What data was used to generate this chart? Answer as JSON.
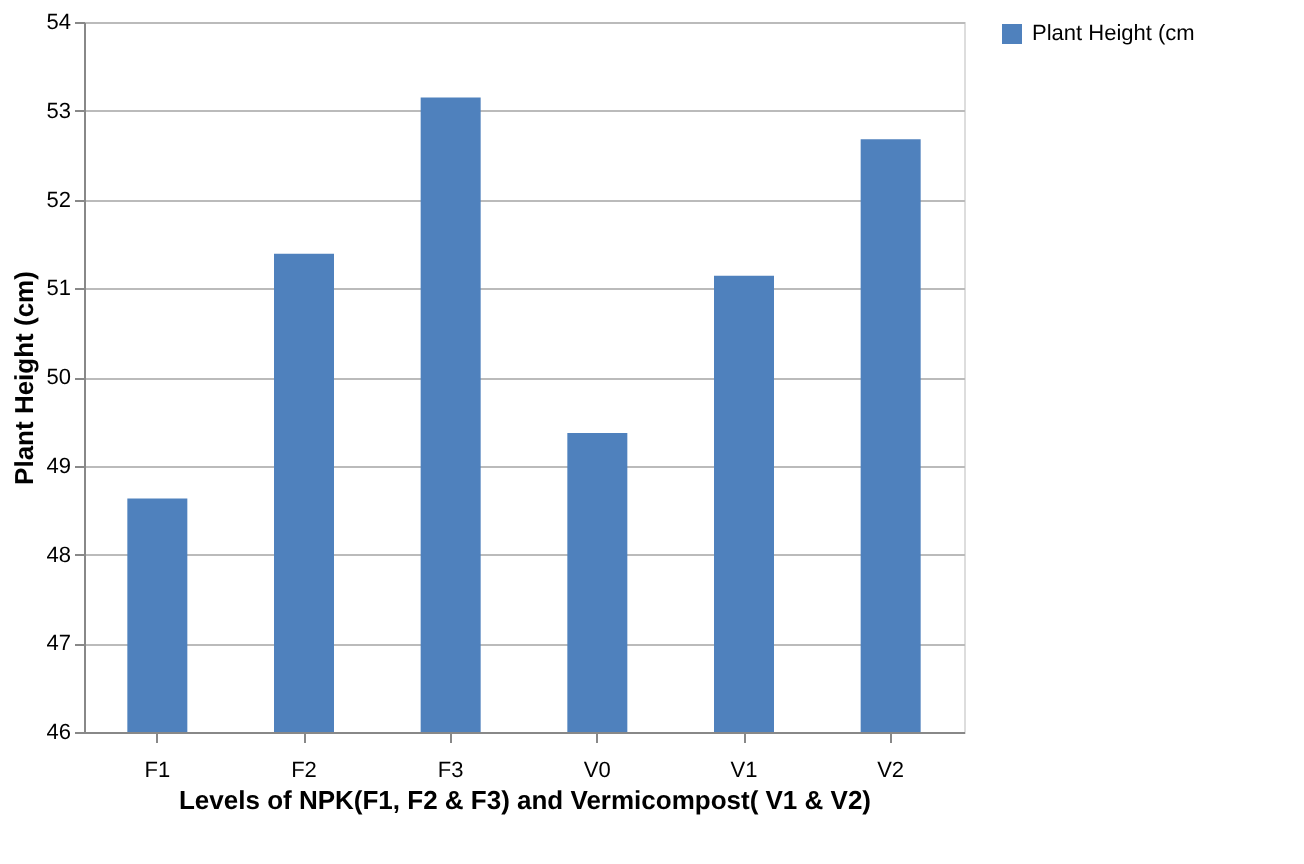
{
  "chart_data": {
    "type": "bar",
    "xlabel": "Levels of NPK(F1, F2 & F3) and Vermicompost( V1 & V2)",
    "ylabel": "Plant Height (cm)",
    "categories": [
      "F1",
      "F2",
      "F3",
      "V0",
      "V1",
      "V2"
    ],
    "series": [
      {
        "name": "Plant Height (cm",
        "color": "#4f81bd",
        "values": [
          48.63,
          51.39,
          53.15,
          49.37,
          51.14,
          52.68
        ]
      }
    ],
    "ylim": [
      46,
      54
    ],
    "yticks": [
      46,
      47,
      48,
      49,
      50,
      51,
      52,
      53,
      54
    ],
    "grid": "y",
    "legend": "right"
  }
}
